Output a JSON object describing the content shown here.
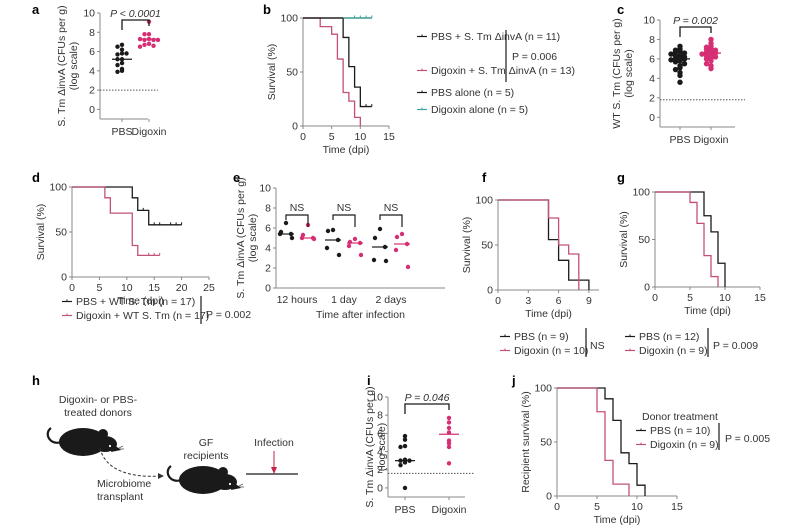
{
  "colors": {
    "black": "#1a1a1a",
    "pink": "#c2507a",
    "pink_dot": "#d62f73",
    "teal": "#3aa6a0",
    "axis": "#888888",
    "mouse": "#1a1a1a",
    "infection_arrow": "#c2274a"
  },
  "chart_data": [
    {
      "panel": "a",
      "type": "scatter",
      "ylabel": [
        "S. Tm ΔinvA (CFUs per g)",
        "(log scale)"
      ],
      "categories": [
        "PBS",
        "Digoxin"
      ],
      "ylim": [
        -1,
        10
      ],
      "yticks": [
        0,
        2,
        4,
        6,
        8,
        10
      ],
      "detection_limit": 2,
      "series": [
        {
          "name": "PBS",
          "color": "black",
          "median": 5.2,
          "values": [
            6.7,
            6.5,
            6.2,
            5.8,
            5.7,
            5.8,
            5.2,
            5.2,
            4.8,
            4.6,
            4.0,
            3.9,
            4.2
          ]
        },
        {
          "name": "Digoxin",
          "color": "pink_dot",
          "median": 7.3,
          "values": [
            9.1,
            7.8,
            7.8,
            7.3,
            7.2,
            7.2,
            7.3,
            7.2,
            6.8,
            6.7,
            6.6,
            6.5
          ]
        }
      ],
      "annotation": "P < 0.0001"
    },
    {
      "panel": "b",
      "type": "line",
      "subtype": "kaplan-meier",
      "ylabel": "Survival (%)",
      "xlabel": "Time (dpi)",
      "xlim": [
        0,
        15
      ],
      "xticks": [
        0,
        5,
        10,
        15
      ],
      "ylim": [
        0,
        100
      ],
      "yticks": [
        0,
        50,
        100
      ],
      "series": [
        {
          "name": "PBS + S. Tm ΔinvA (n = 11)",
          "color": "black",
          "steps": [
            [
              0,
              100
            ],
            [
              7,
              100
            ],
            [
              7,
              82
            ],
            [
              8,
              82
            ],
            [
              8,
              55
            ],
            [
              9,
              55
            ],
            [
              9,
              36
            ],
            [
              10,
              36
            ],
            [
              10,
              18
            ],
            [
              12,
              18
            ]
          ],
          "censor": [
            11,
            12
          ]
        },
        {
          "name": "Digoxin + S. Tm ΔinvA (n = 13)",
          "color": "pink",
          "steps": [
            [
              0,
              100
            ],
            [
              3,
              100
            ],
            [
              3,
              92
            ],
            [
              5,
              92
            ],
            [
              5,
              85
            ],
            [
              6,
              85
            ],
            [
              6,
              62
            ],
            [
              7,
              62
            ],
            [
              7,
              31
            ],
            [
              8,
              31
            ],
            [
              8,
              23
            ],
            [
              9,
              23
            ],
            [
              9,
              8
            ],
            [
              10,
              8
            ],
            [
              10,
              0
            ]
          ],
          "censor": []
        },
        {
          "name": "PBS alone (n = 5)",
          "color": "black",
          "steps": [
            [
              0,
              100
            ],
            [
              12,
              100
            ]
          ],
          "censor": []
        },
        {
          "name": "Digoxin alone (n = 5)",
          "color": "teal",
          "steps": [
            [
              7,
              100
            ],
            [
              12,
              100
            ]
          ],
          "censor": [
            9,
            10,
            11,
            12
          ]
        }
      ],
      "legend": [
        "PBS + S. Tm ΔinvA (n = 11)",
        "Digoxin + S. Tm ΔinvA (n = 13)",
        "PBS alone (n = 5)",
        "Digoxin alone (n = 5)"
      ],
      "annotation": "P = 0.006"
    },
    {
      "panel": "c",
      "type": "scatter",
      "ylabel": [
        "WT S. Tm (CFUs per g)",
        "(log scale)"
      ],
      "categories": [
        "PBS",
        "Digoxin"
      ],
      "ylim": [
        -1,
        10
      ],
      "yticks": [
        0,
        2,
        4,
        6,
        8,
        10
      ],
      "detection_limit": 1.8,
      "series": [
        {
          "name": "PBS",
          "color": "black",
          "median": 6.0,
          "values": [
            7.3,
            7.0,
            6.9,
            6.8,
            6.7,
            6.6,
            6.5,
            6.4,
            6.3,
            6.2,
            6.1,
            6.0,
            6.0,
            5.9,
            5.8,
            5.7,
            5.5,
            5.3,
            5.1,
            4.9,
            4.6,
            4.3,
            3.6
          ]
        },
        {
          "name": "Digoxin",
          "color": "pink_dot",
          "median": 6.6,
          "values": [
            8.0,
            7.6,
            7.3,
            7.2,
            7.1,
            7.0,
            6.9,
            6.8,
            6.7,
            6.6,
            6.5,
            6.4,
            6.3,
            6.2,
            6.1,
            6.0,
            5.8,
            5.5,
            5.3,
            5.0
          ]
        }
      ],
      "annotation": "P = 0.002"
    },
    {
      "panel": "d",
      "type": "line",
      "subtype": "kaplan-meier",
      "ylabel": "Survival (%)",
      "xlabel": "Time (dpi)",
      "xlim": [
        0,
        25
      ],
      "xticks": [
        0,
        5,
        10,
        15,
        20,
        25
      ],
      "ylim": [
        0,
        100
      ],
      "yticks": [
        0,
        50,
        100
      ],
      "series": [
        {
          "name": "PBS + WT S. Tm (n = 17)",
          "color": "black",
          "steps": [
            [
              0,
              100
            ],
            [
              11,
              100
            ],
            [
              11,
              88
            ],
            [
              12,
              88
            ],
            [
              12,
              74
            ],
            [
              14,
              74
            ],
            [
              14,
              58
            ],
            [
              20,
              58
            ]
          ],
          "censor": [
            13,
            15,
            16,
            18,
            19,
            20
          ]
        },
        {
          "name": "Digoxin + WT S. Tm (n = 17)",
          "color": "pink",
          "steps": [
            [
              0,
              100
            ],
            [
              6,
              100
            ],
            [
              6,
              88
            ],
            [
              7,
              88
            ],
            [
              7,
              71
            ],
            [
              11,
              71
            ],
            [
              11,
              35
            ],
            [
              12,
              35
            ],
            [
              12,
              24
            ],
            [
              16,
              24
            ]
          ],
          "censor": [
            14,
            15,
            16
          ]
        }
      ],
      "legend": [
        "PBS + WT S. Tm (n = 17)",
        "Digoxin + WT S. Tm (n = 17)"
      ],
      "annotation": "P = 0.002"
    },
    {
      "panel": "e",
      "type": "scatter",
      "ylabel": [
        "S. Tm ΔinvA (CFUs per g)",
        "(log scale)"
      ],
      "xlabel": "Time after infection",
      "categories": [
        "12 hours",
        "1 day",
        "2 days"
      ],
      "ylim": [
        0,
        10
      ],
      "yticks": [
        0,
        2,
        4,
        6,
        8,
        10
      ],
      "groups": [
        {
          "category": "12 hours",
          "annotation": "NS",
          "PBS": {
            "median": 5.4,
            "values": [
              6.5,
              5.6,
              5.4,
              5.4,
              5.0
            ]
          },
          "Digoxin": {
            "median": 5.0,
            "values": [
              6.3,
              5.3,
              5.0,
              5.0,
              4.9
            ]
          }
        },
        {
          "category": "1 day",
          "annotation": "NS",
          "PBS": {
            "median": 4.8,
            "values": [
              5.8,
              5.7,
              4.8,
              4.0,
              3.3
            ]
          },
          "Digoxin": {
            "median": 4.5,
            "values": [
              4.9,
              4.6,
              4.5,
              4.2,
              3.3
            ]
          }
        },
        {
          "category": "2 days",
          "annotation": "NS",
          "PBS": {
            "median": 4.1,
            "values": [
              5.9,
              5.0,
              4.1,
              2.8,
              2.7
            ]
          },
          "Digoxin": {
            "median": 4.4,
            "values": [
              5.4,
              5.1,
              4.4,
              3.8,
              2.1
            ]
          }
        }
      ]
    },
    {
      "panel": "f",
      "type": "line",
      "subtype": "kaplan-meier",
      "ylabel": "Survival (%)",
      "xlabel": "Time (dpi)",
      "xlim": [
        0,
        10
      ],
      "xticks": [
        0,
        3,
        6,
        9
      ],
      "ylim": [
        0,
        100
      ],
      "yticks": [
        0,
        50,
        100
      ],
      "series": [
        {
          "name": "PBS (n = 9)",
          "color": "black",
          "steps": [
            [
              0,
              100
            ],
            [
              5,
              100
            ],
            [
              5,
              56
            ],
            [
              6,
              56
            ],
            [
              6,
              33
            ],
            [
              7,
              33
            ],
            [
              7,
              11
            ],
            [
              9,
              11
            ],
            [
              9,
              0
            ]
          ],
          "censor": []
        },
        {
          "name": "Digoxin (n = 10)",
          "color": "pink",
          "steps": [
            [
              0,
              100
            ],
            [
              5,
              100
            ],
            [
              5,
              80
            ],
            [
              6,
              80
            ],
            [
              6,
              50
            ],
            [
              7,
              50
            ],
            [
              7,
              40
            ],
            [
              8,
              40
            ],
            [
              8,
              0
            ]
          ],
          "censor": []
        }
      ],
      "legend": [
        "PBS (n = 9)",
        "Digoxin (n = 10)"
      ],
      "annotation": "NS"
    },
    {
      "panel": "g",
      "type": "line",
      "subtype": "kaplan-meier",
      "ylabel": "Survival (%)",
      "xlabel": "Time (dpi)",
      "xlim": [
        0,
        15
      ],
      "xticks": [
        0,
        5,
        10,
        15
      ],
      "ylim": [
        0,
        100
      ],
      "yticks": [
        0,
        50,
        100
      ],
      "series": [
        {
          "name": "PBS (n = 12)",
          "color": "black",
          "steps": [
            [
              0,
              100
            ],
            [
              7,
              100
            ],
            [
              7,
              75
            ],
            [
              8,
              75
            ],
            [
              8,
              58
            ],
            [
              9,
              58
            ],
            [
              9,
              25
            ],
            [
              10,
              25
            ],
            [
              10,
              0
            ]
          ],
          "censor": []
        },
        {
          "name": "Digoxin (n = 9)",
          "color": "pink",
          "steps": [
            [
              0,
              100
            ],
            [
              5,
              100
            ],
            [
              5,
              89
            ],
            [
              6,
              89
            ],
            [
              6,
              67
            ],
            [
              7,
              67
            ],
            [
              7,
              33
            ],
            [
              8,
              33
            ],
            [
              8,
              11
            ],
            [
              9,
              11
            ],
            [
              9,
              0
            ]
          ],
          "censor": []
        }
      ],
      "legend": [
        "PBS (n = 12)",
        "Digoxin (n = 9)"
      ],
      "annotation": "P = 0.009"
    },
    {
      "panel": "i",
      "type": "scatter",
      "ylabel": [
        "S. Tm ΔinvA (CFUs per g)",
        "(log scale)"
      ],
      "categories": [
        "PBS",
        "Digoxin"
      ],
      "ylim": [
        -1,
        10
      ],
      "yticks": [
        0,
        2,
        4,
        6,
        8,
        10
      ],
      "detection_limit": 1.6,
      "series": [
        {
          "name": "PBS",
          "color": "black",
          "median": 3.0,
          "values": [
            5.7,
            5.3,
            4.6,
            4.5,
            3.1,
            3.0,
            3.0,
            2.8,
            2.5,
            0.0
          ]
        },
        {
          "name": "Digoxin",
          "color": "pink_dot",
          "median": 5.9,
          "values": [
            7.7,
            7.2,
            6.6,
            6.1,
            5.2,
            4.9,
            4.5,
            2.7
          ]
        }
      ],
      "annotation": "P = 0.046"
    },
    {
      "panel": "j",
      "type": "line",
      "subtype": "kaplan-meier",
      "ylabel": "Recipient survival (%)",
      "xlabel": "Time (dpi)",
      "xlim": [
        0,
        15
      ],
      "xticks": [
        0,
        5,
        10,
        15
      ],
      "ylim": [
        0,
        100
      ],
      "yticks": [
        0,
        50,
        100
      ],
      "series": [
        {
          "name": "PBS (n = 10)",
          "color": "black",
          "steps": [
            [
              0,
              100
            ],
            [
              6,
              100
            ],
            [
              6,
              90
            ],
            [
              7,
              90
            ],
            [
              7,
              70
            ],
            [
              8,
              70
            ],
            [
              8,
              40
            ],
            [
              9,
              40
            ],
            [
              9,
              30
            ],
            [
              10,
              30
            ],
            [
              10,
              10
            ],
            [
              11,
              10
            ],
            [
              11,
              0
            ]
          ],
          "censor": []
        },
        {
          "name": "Digoxin (n = 9)",
          "color": "pink",
          "steps": [
            [
              0,
              100
            ],
            [
              5,
              100
            ],
            [
              5,
              78
            ],
            [
              6,
              78
            ],
            [
              6,
              33
            ],
            [
              7,
              33
            ],
            [
              7,
              11
            ],
            [
              9,
              11
            ],
            [
              9,
              0
            ]
          ],
          "censor": []
        }
      ],
      "legend_title": "Donor treatment",
      "legend": [
        "PBS (n = 10)",
        "Digoxin (n = 9)"
      ],
      "annotation": "P = 0.005"
    }
  ],
  "panel_h": {
    "donor_label": [
      "Digoxin- or PBS-",
      "treated donors"
    ],
    "recipient_label": [
      "GF",
      "recipients"
    ],
    "transplant_label": [
      "Microbiome",
      "transplant"
    ],
    "infection_label": "Infection"
  },
  "panel_letters": [
    "a",
    "b",
    "c",
    "d",
    "e",
    "f",
    "g",
    "h",
    "i",
    "j"
  ]
}
